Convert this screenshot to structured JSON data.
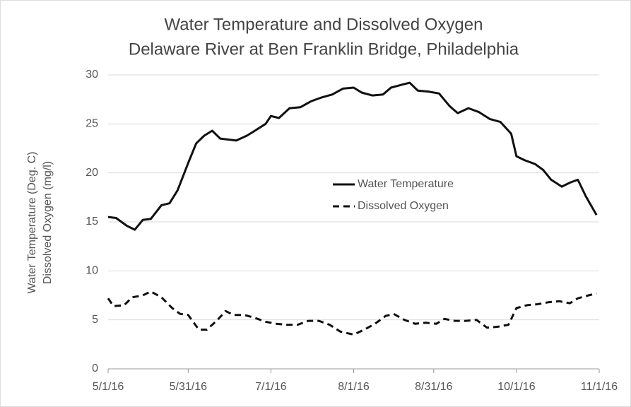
{
  "chart_data": {
    "type": "line",
    "title": "Water Temperature and Dissolved Oxygen",
    "subtitle": "Delaware River at Ben Franklin Bridge, Philadelphia",
    "ylabel": [
      "Water Temperature (Deg. C)",
      "Dissolved Oxygen (mg/l)"
    ],
    "ylim": [
      0,
      30
    ],
    "yticks": [
      0,
      5,
      10,
      15,
      20,
      25,
      30
    ],
    "xlim": [
      "2016-05-01",
      "2016-11-01"
    ],
    "xticks": [
      {
        "value": "2016-05-01",
        "label": "5/1/16"
      },
      {
        "value": "2016-05-31",
        "label": "5/31/16"
      },
      {
        "value": "2016-07-01",
        "label": "7/1/16"
      },
      {
        "value": "2016-08-01",
        "label": "8/1/16"
      },
      {
        "value": "2016-08-31",
        "label": "8/31/16"
      },
      {
        "value": "2016-10-01",
        "label": "10/1/16"
      },
      {
        "value": "2016-11-01",
        "label": "11/1/16"
      }
    ],
    "grid": true,
    "series": [
      {
        "name": "Water Temperature",
        "color": "#111111",
        "dash": "solid",
        "x": [
          "2016-05-01",
          "2016-05-04",
          "2016-05-08",
          "2016-05-11",
          "2016-05-14",
          "2016-05-17",
          "2016-05-21",
          "2016-05-24",
          "2016-05-27",
          "2016-05-31",
          "2016-06-03",
          "2016-06-06",
          "2016-06-09",
          "2016-06-12",
          "2016-06-15",
          "2016-06-18",
          "2016-06-22",
          "2016-06-25",
          "2016-06-29",
          "2016-07-01",
          "2016-07-04",
          "2016-07-08",
          "2016-07-12",
          "2016-07-16",
          "2016-07-20",
          "2016-07-24",
          "2016-07-28",
          "2016-08-01",
          "2016-08-04",
          "2016-08-08",
          "2016-08-12",
          "2016-08-15",
          "2016-08-19",
          "2016-08-22",
          "2016-08-25",
          "2016-08-29",
          "2016-09-02",
          "2016-09-06",
          "2016-09-09",
          "2016-09-13",
          "2016-09-17",
          "2016-09-21",
          "2016-09-25",
          "2016-09-29",
          "2016-10-01",
          "2016-10-04",
          "2016-10-08",
          "2016-10-11",
          "2016-10-14",
          "2016-10-18",
          "2016-10-21",
          "2016-10-24",
          "2016-10-27",
          "2016-10-31"
        ],
        "values": [
          15.5,
          15.4,
          14.6,
          14.2,
          15.2,
          15.3,
          16.7,
          16.9,
          18.2,
          21.0,
          23.0,
          23.8,
          24.3,
          23.5,
          23.4,
          23.3,
          23.8,
          24.3,
          25.0,
          25.8,
          25.6,
          26.6,
          26.7,
          27.3,
          27.7,
          28.0,
          28.6,
          28.7,
          28.2,
          27.9,
          28.0,
          28.7,
          29.0,
          29.2,
          28.4,
          28.3,
          28.1,
          26.8,
          26.1,
          26.6,
          26.2,
          25.5,
          25.2,
          24.0,
          21.7,
          21.3,
          20.9,
          20.3,
          19.3,
          18.6,
          19.0,
          19.3,
          17.6,
          15.7
        ]
      },
      {
        "name": "Dissolved Oxygen",
        "color": "#111111",
        "dash": "dashed",
        "x": [
          "2016-05-01",
          "2016-05-03",
          "2016-05-07",
          "2016-05-10",
          "2016-05-14",
          "2016-05-17",
          "2016-05-21",
          "2016-05-25",
          "2016-05-28",
          "2016-05-31",
          "2016-06-04",
          "2016-06-07",
          "2016-06-11",
          "2016-06-14",
          "2016-06-17",
          "2016-06-21",
          "2016-06-25",
          "2016-06-29",
          "2016-07-03",
          "2016-07-07",
          "2016-07-11",
          "2016-07-15",
          "2016-07-19",
          "2016-07-23",
          "2016-07-27",
          "2016-08-01",
          "2016-08-05",
          "2016-08-09",
          "2016-08-13",
          "2016-08-16",
          "2016-08-20",
          "2016-08-24",
          "2016-08-28",
          "2016-09-01",
          "2016-09-04",
          "2016-09-08",
          "2016-09-12",
          "2016-09-16",
          "2016-09-20",
          "2016-09-24",
          "2016-09-28",
          "2016-10-01",
          "2016-10-05",
          "2016-10-09",
          "2016-10-13",
          "2016-10-17",
          "2016-10-21",
          "2016-10-24",
          "2016-10-28",
          "2016-10-31"
        ],
        "values": [
          7.2,
          6.4,
          6.5,
          7.3,
          7.5,
          7.9,
          7.3,
          6.2,
          5.6,
          5.5,
          4.0,
          4.0,
          5.0,
          5.9,
          5.5,
          5.5,
          5.2,
          4.8,
          4.6,
          4.5,
          4.5,
          4.9,
          4.9,
          4.5,
          3.8,
          3.5,
          4.0,
          4.6,
          5.4,
          5.6,
          5.0,
          4.6,
          4.7,
          4.6,
          5.1,
          4.9,
          4.9,
          5.0,
          4.2,
          4.3,
          4.5,
          6.2,
          6.5,
          6.6,
          6.8,
          6.9,
          6.7,
          7.2,
          7.5,
          7.7
        ]
      }
    ]
  }
}
